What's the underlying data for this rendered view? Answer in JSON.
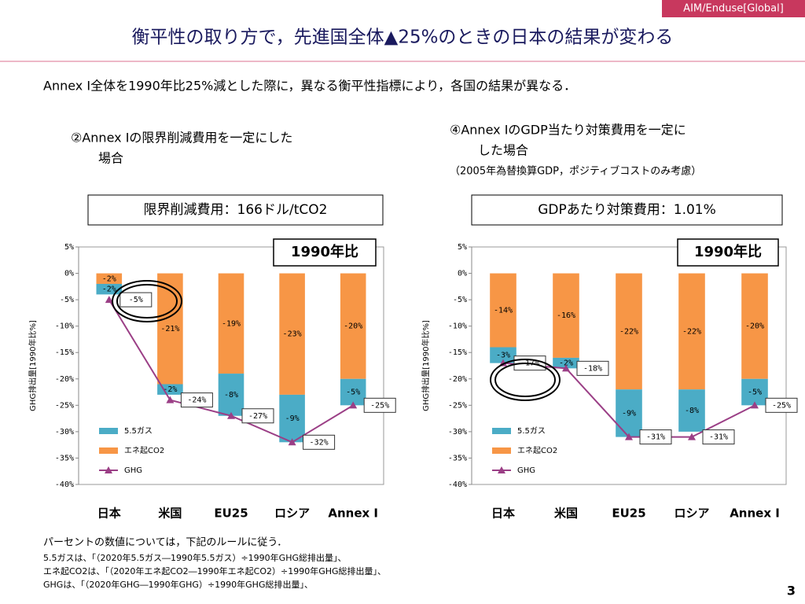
{
  "header": {
    "tag": "AIM/Enduse[Global]",
    "title": "衡平性の取り方で，先進国全体▲25%のときの日本の結果が変わる",
    "subtitle": "Annex I全体を1990年比25%減とした際に，異なる衡平性指標により，各国の結果が異なる．"
  },
  "panels": [
    {
      "heading": [
        "②Annex Iの限界削減費用を一定にした",
        "場合"
      ]
    },
    {
      "heading": [
        "④Annex IのGDP当たり対策費用を一定に",
        "した場合"
      ],
      "note": "（2005年為替換算GDP，ポジティブコストのみ考慮）"
    }
  ],
  "chart_data": [
    {
      "type": "bar",
      "stacked": true,
      "subtitle": "限界削減費用：166ドル/tCO2",
      "annotation": "1990年比",
      "ylabel": "GHG排出量[1990年比%]",
      "categories": [
        "日本",
        "米国",
        "EU25",
        "ロシア",
        "Annex I"
      ],
      "series": [
        {
          "name": "5.5ガス",
          "type": "bar",
          "color": "#4bacc6",
          "values": [
            -2,
            -2,
            -8,
            -9,
            -5
          ],
          "value_labels": [
            "-2%",
            "-2%",
            "-8%",
            "-9%",
            "-5%"
          ]
        },
        {
          "name": "エネ起CO2",
          "type": "bar",
          "color": "#f79646",
          "values": [
            -2,
            -21,
            -19,
            -23,
            -20
          ],
          "value_labels": [
            "-2%",
            "-21%",
            "-19%",
            "-23%",
            "-20%"
          ]
        },
        {
          "name": "GHG",
          "type": "line",
          "color": "#9b3f86",
          "values": [
            -5,
            -24,
            -27,
            -32,
            -25
          ],
          "value_labels": [
            "-5%",
            "-24%",
            "-27%",
            "-32%",
            "-25%"
          ]
        }
      ],
      "ylim": [
        -40,
        5
      ],
      "yticks": [
        {
          "value": 5,
          "label": "5%"
        },
        {
          "value": 0,
          "label": "0%"
        },
        {
          "value": -5,
          "label": "-5%"
        },
        {
          "value": -10,
          "label": "-10%"
        },
        {
          "value": -15,
          "label": "-15%"
        },
        {
          "value": -20,
          "label": "-20%"
        },
        {
          "value": -25,
          "label": "-25%"
        },
        {
          "value": -30,
          "label": "-30%"
        },
        {
          "value": -35,
          "label": "-35%"
        },
        {
          "value": -40,
          "label": "-40%"
        }
      ],
      "grid": false
    },
    {
      "type": "bar",
      "stacked": true,
      "subtitle": "GDPあたり対策費用：1.01%",
      "annotation": "1990年比",
      "ylabel": "GHG排出量[1990年比%]",
      "categories": [
        "日本",
        "米国",
        "EU25",
        "ロシア",
        "Annex I"
      ],
      "series": [
        {
          "name": "5.5ガス",
          "type": "bar",
          "color": "#4bacc6",
          "values": [
            -3,
            -2,
            -9,
            -8,
            -5
          ],
          "value_labels": [
            "-3%",
            "-2%",
            "-9%",
            "-8%",
            "-5%"
          ]
        },
        {
          "name": "エネ起CO2",
          "type": "bar",
          "color": "#f79646",
          "values": [
            -14,
            -16,
            -22,
            -22,
            -20
          ],
          "value_labels": [
            "-14%",
            "-16%",
            "-22%",
            "-22%",
            "-20%"
          ]
        },
        {
          "name": "GHG",
          "type": "line",
          "color": "#9b3f86",
          "values": [
            -17,
            -18,
            -31,
            -31,
            -25
          ],
          "value_labels": [
            "-17%",
            "-18%",
            "-31%",
            "-31%",
            "-25%"
          ]
        }
      ],
      "ylim": [
        -40,
        5
      ],
      "yticks": [
        {
          "value": 5,
          "label": "5%"
        },
        {
          "value": 0,
          "label": "0%"
        },
        {
          "value": -5,
          "label": "-5%"
        },
        {
          "value": -10,
          "label": "-10%"
        },
        {
          "value": -15,
          "label": "-15%"
        },
        {
          "value": -20,
          "label": "-20%"
        },
        {
          "value": -25,
          "label": "-25%"
        },
        {
          "value": -30,
          "label": "-30%"
        },
        {
          "value": -35,
          "label": "-35%"
        },
        {
          "value": -40,
          "label": "-40%"
        }
      ],
      "grid": false
    }
  ],
  "footnotes": [
    "パーセントの数値については，下記のルールに従う．",
    "5.5ガスは、「（2020年5.5ガス―1990年5.5ガス）÷1990年GHG総排出量」、",
    "エネ起CO2は、「（2020年エネ起CO2―1990年エネ起CO2）÷1990年GHG総排出量」、",
    "GHGは、「（2020年GHG―1990年GHG）÷1990年GHG総排出量」、"
  ],
  "page_number": "3"
}
